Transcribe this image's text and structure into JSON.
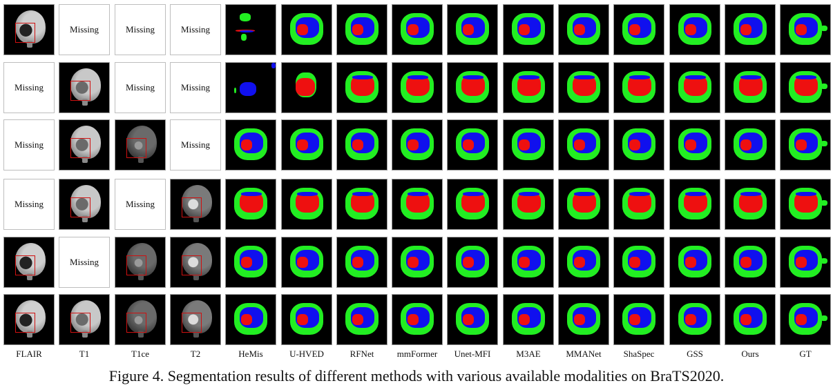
{
  "figure": {
    "columns": [
      "FLAIR",
      "T1",
      "T1ce",
      "T2",
      "HeMis",
      "U-HVED",
      "RFNet",
      "mmFormer",
      "Unet-MFI",
      "M3AE",
      "MMANet",
      "ShaSpec",
      "GSS",
      "Ours",
      "GT"
    ],
    "missing_label": "Missing",
    "caption": "Figure 4. Segmentation results of different methods with various available modalities on BraTS2020.",
    "rows": [
      {
        "modalities": [
          "present",
          "missing",
          "missing",
          "missing"
        ]
      },
      {
        "modalities": [
          "missing",
          "present",
          "missing",
          "missing"
        ]
      },
      {
        "modalities": [
          "missing",
          "present",
          "present",
          "missing"
        ]
      },
      {
        "modalities": [
          "missing",
          "present",
          "missing",
          "present"
        ]
      },
      {
        "modalities": [
          "present",
          "missing",
          "present",
          "present"
        ]
      },
      {
        "modalities": [
          "present",
          "present",
          "present",
          "present"
        ]
      }
    ],
    "segmentation_colors": {
      "edema": "#22ee22",
      "enhancing_tumor": "#1010ee",
      "necrotic_core": "#ee1010",
      "background": "#000000"
    },
    "roi_box_color": "#d01010"
  }
}
